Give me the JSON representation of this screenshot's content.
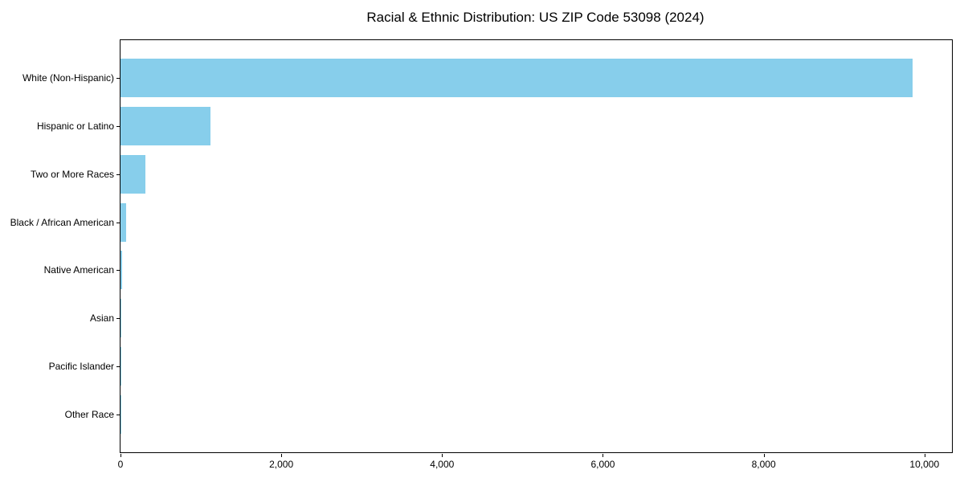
{
  "chart_data": {
    "type": "bar",
    "orientation": "horizontal",
    "title": "Racial & Ethnic Distribution: US ZIP Code 53098 (2024)",
    "categories": [
      "White (Non-Hispanic)",
      "Hispanic or Latino",
      "Two or More Races",
      "Black / African American",
      "Native American",
      "Asian",
      "Pacific Islander",
      "Other Race"
    ],
    "values": [
      9850,
      1120,
      310,
      65,
      15,
      10,
      2,
      5
    ],
    "xlabel": "",
    "ylabel": "",
    "xlim": [
      0,
      10342
    ],
    "xticks": [
      0,
      2000,
      4000,
      6000,
      8000,
      10000
    ],
    "xtick_labels": [
      "0",
      "2,000",
      "4,000",
      "6,000",
      "8,000",
      "10,000"
    ],
    "bar_color": "#87CEEB",
    "axis_color": "#000000",
    "text_color": "#000000",
    "grid": false,
    "legend": null,
    "bar_fraction": 0.8,
    "outer_pad_units": 0.79
  }
}
